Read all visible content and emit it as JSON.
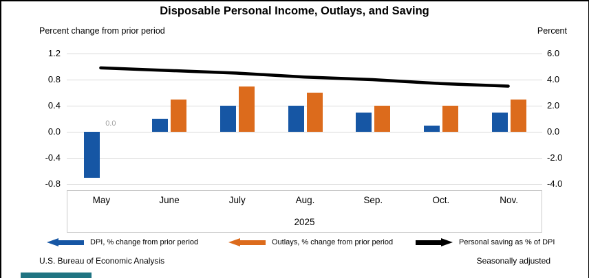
{
  "title": "Disposable Personal Income, Outlays, and Saving",
  "axis_captions": {
    "left": "Percent change from prior period",
    "right": "Percent"
  },
  "footer": {
    "left": "U.S. Bureau of Economic Analysis",
    "right": "Seasonally adjusted"
  },
  "colors": {
    "dpi": "#1656A4",
    "outlays": "#DC6B1C",
    "saving": "#000000",
    "gridline": "#D9D9D9",
    "zero_label_gray": "#A0A0A0",
    "teal_bar": "#1F7482",
    "frame": "#000000"
  },
  "chart_data": {
    "type": "bar+line",
    "categories": [
      "May",
      "June",
      "July",
      "Aug.",
      "Sep.",
      "Oct.",
      "Nov."
    ],
    "year_label": "2025",
    "series": [
      {
        "name": "DPI, % change from prior period",
        "type": "bar",
        "axis": "left",
        "color_key": "dpi",
        "values": [
          -0.7,
          0.2,
          0.4,
          0.4,
          0.3,
          0.1,
          0.3
        ]
      },
      {
        "name": "Outlays, % change from prior period",
        "type": "bar",
        "axis": "left",
        "color_key": "outlays",
        "values": [
          0.0,
          0.5,
          0.7,
          0.6,
          0.4,
          0.4,
          0.5
        ]
      },
      {
        "name": "Personal saving as % of DPI",
        "type": "line",
        "axis": "right",
        "color_key": "saving",
        "values": [
          4.9,
          4.7,
          4.5,
          4.2,
          4.0,
          3.7,
          3.5
        ]
      }
    ],
    "left_axis": {
      "title": "Percent change from prior period",
      "ticks": [
        "1.2",
        "0.8",
        "0.4",
        "0.0",
        "-0.4",
        "-0.8"
      ],
      "min": -0.8,
      "max": 1.2
    },
    "right_axis": {
      "title": "Percent",
      "ticks": [
        "6.0",
        "4.0",
        "2.0",
        "0.0",
        "-2.0",
        "-4.0"
      ],
      "min": -4.0,
      "max": 6.0
    },
    "grid": "horizontal",
    "legend_position": "bottom",
    "annotations": [
      {
        "text": "0.0",
        "month": "May",
        "series": "Outlays, % change from prior period"
      }
    ]
  }
}
